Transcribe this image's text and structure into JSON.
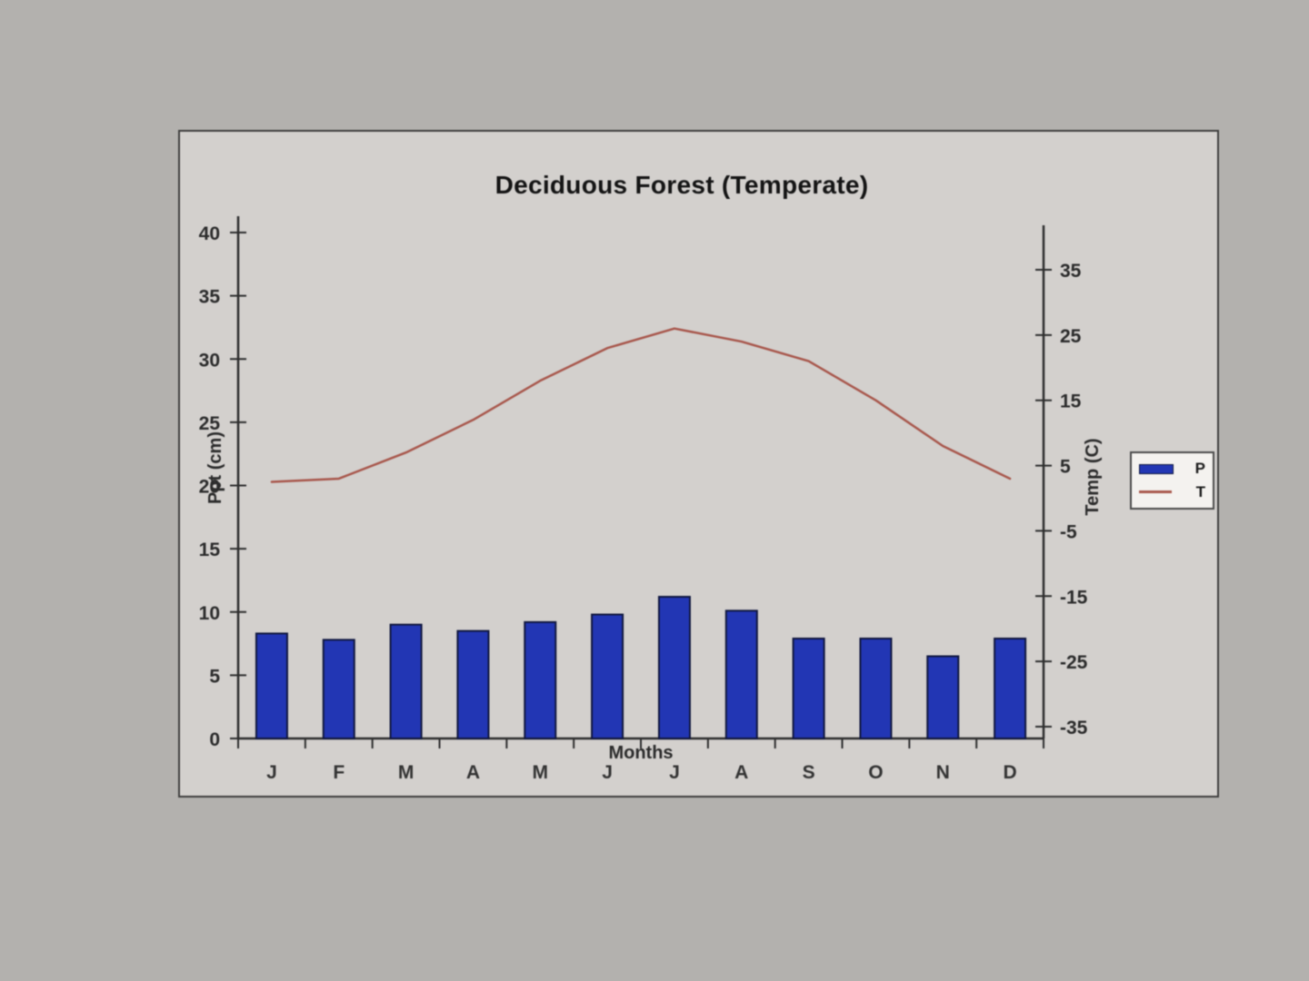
{
  "chart_data": {
    "type": "bar+line",
    "title": "Deciduous Forest (Temperate)",
    "xlabel": "Months",
    "categories": [
      "J",
      "F",
      "M",
      "A",
      "M",
      "J",
      "J",
      "A",
      "S",
      "O",
      "N",
      "D"
    ],
    "series": [
      {
        "name": "P",
        "type": "bar",
        "axis": "left",
        "color": "#2236b4",
        "values": [
          8.3,
          7.8,
          9.0,
          8.5,
          9.2,
          9.8,
          11.2,
          10.1,
          7.9,
          7.9,
          6.5,
          7.9
        ]
      },
      {
        "name": "T",
        "type": "line",
        "axis": "right",
        "color": "#a8574c",
        "values": [
          2.5,
          3,
          7,
          12,
          18,
          23,
          26,
          24,
          21,
          15,
          8,
          3
        ]
      }
    ],
    "left_axis": {
      "label": "Ppt (cm)",
      "min": 0,
      "max": 40,
      "ticks": [
        0,
        5,
        10,
        15,
        20,
        25,
        30,
        35,
        40
      ]
    },
    "right_axis": {
      "label": "Temp (C)",
      "min": -35,
      "max": 35,
      "ticks": [
        35,
        25,
        15,
        5,
        -5,
        -15,
        -25,
        -35
      ]
    },
    "legend_position": "right"
  }
}
